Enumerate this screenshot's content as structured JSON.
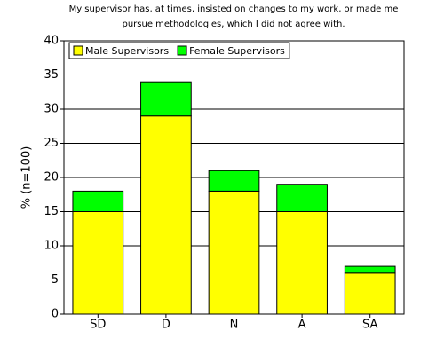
{
  "chart_data": {
    "type": "stacked_bar",
    "title": [
      "My supervisor has, at times, insisted on changes to my work, or made me",
      "pursue methodologies, which I did not agree with."
    ],
    "y_label": "% (n=100)",
    "categories": [
      "SD",
      "D",
      "N",
      "A",
      "SA"
    ],
    "series": [
      {
        "name": "Male Supervisors",
        "color": "#ffff00",
        "values": [
          15,
          29,
          18,
          15,
          6
        ]
      },
      {
        "name": "Female Supervisors",
        "color": "#00ff00",
        "values": [
          3,
          5,
          3,
          4,
          1
        ]
      }
    ],
    "ylim": [
      0,
      40
    ],
    "yticks": [
      0,
      5,
      10,
      15,
      20,
      25,
      30,
      35,
      40
    ],
    "grid": true,
    "legend": "top-left"
  }
}
